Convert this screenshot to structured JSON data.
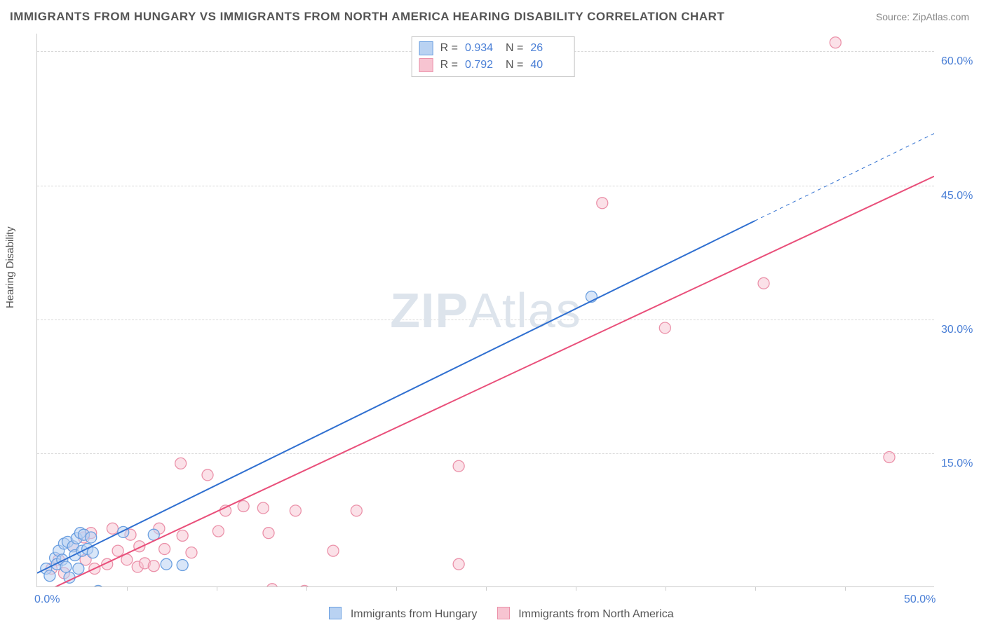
{
  "title": "IMMIGRANTS FROM HUNGARY VS IMMIGRANTS FROM NORTH AMERICA HEARING DISABILITY CORRELATION CHART",
  "source": "Source: ZipAtlas.com",
  "ylabel": "Hearing Disability",
  "watermark_bold": "ZIP",
  "watermark_light": "Atlas",
  "chart": {
    "type": "scatter",
    "xlim": [
      0,
      50
    ],
    "ylim": [
      0,
      62
    ],
    "x_ticks_labeled": [
      {
        "v": 0,
        "label": "0.0%"
      },
      {
        "v": 50,
        "label": "50.0%"
      }
    ],
    "x_ticks_minor": [
      5,
      10,
      15,
      20,
      25,
      30,
      35,
      40,
      45
    ],
    "y_gridlines": [
      15,
      30,
      45,
      60
    ],
    "y_tick_labels": [
      "15.0%",
      "30.0%",
      "45.0%",
      "60.0%"
    ],
    "background_color": "#ffffff",
    "grid_color": "#d8d8d8",
    "axis_color": "#cccccc",
    "tick_label_color": "#4a7fd6",
    "marker_radius": 8,
    "marker_stroke_width": 1.3,
    "line_width": 2,
    "series": [
      {
        "name": "Immigrants from Hungary",
        "short": "hungary",
        "color_stroke": "#6a9fe0",
        "color_fill": "#b9d2f2",
        "color_fill_opacity": 0.55,
        "line_color": "#2f6fd0",
        "R": "0.934",
        "N": "26",
        "points": [
          [
            0.5,
            2.0
          ],
          [
            0.7,
            1.2
          ],
          [
            1.0,
            3.2
          ],
          [
            1.1,
            2.5
          ],
          [
            1.2,
            4.0
          ],
          [
            1.4,
            3.0
          ],
          [
            1.5,
            4.8
          ],
          [
            1.6,
            2.2
          ],
          [
            1.7,
            5.0
          ],
          [
            1.8,
            1.0
          ],
          [
            2.0,
            4.5
          ],
          [
            2.1,
            3.5
          ],
          [
            2.2,
            5.4
          ],
          [
            2.3,
            2.0
          ],
          [
            2.4,
            6.0
          ],
          [
            2.5,
            4.0
          ],
          [
            2.6,
            5.8
          ],
          [
            2.8,
            4.2
          ],
          [
            3.0,
            5.5
          ],
          [
            3.1,
            3.8
          ],
          [
            3.4,
            -0.5
          ],
          [
            4.8,
            6.1
          ],
          [
            6.5,
            5.8
          ],
          [
            7.2,
            2.5
          ],
          [
            8.1,
            2.4
          ],
          [
            30.9,
            32.5
          ]
        ],
        "trend_x1": 0,
        "trend_y1": 1.5,
        "trend_x2": 40,
        "trend_y2": 41.0,
        "trend_dash_x2": 50,
        "trend_dash_y2": 50.8
      },
      {
        "name": "Immigrants from North America",
        "short": "north-america",
        "color_stroke": "#eb91a9",
        "color_fill": "#f7c4d1",
        "color_fill_opacity": 0.5,
        "line_color": "#e94f7a",
        "R": "0.792",
        "N": "40",
        "points": [
          [
            0.8,
            2.0
          ],
          [
            1.2,
            3.0
          ],
          [
            1.5,
            1.5
          ],
          [
            2.0,
            4.5
          ],
          [
            2.6,
            5.5
          ],
          [
            2.7,
            3.0
          ],
          [
            3.0,
            6.0
          ],
          [
            3.2,
            2.0
          ],
          [
            3.9,
            2.5
          ],
          [
            4.2,
            6.5
          ],
          [
            4.5,
            4.0
          ],
          [
            5.0,
            3.0
          ],
          [
            5.2,
            5.8
          ],
          [
            5.6,
            2.2
          ],
          [
            5.7,
            4.5
          ],
          [
            6.0,
            2.6
          ],
          [
            6.5,
            2.3
          ],
          [
            6.8,
            6.5
          ],
          [
            7.1,
            4.2
          ],
          [
            8.0,
            13.8
          ],
          [
            8.1,
            5.7
          ],
          [
            8.6,
            3.8
          ],
          [
            9.5,
            12.5
          ],
          [
            10.1,
            6.2
          ],
          [
            10.5,
            8.5
          ],
          [
            11.5,
            9.0
          ],
          [
            12.6,
            8.8
          ],
          [
            12.9,
            6.0
          ],
          [
            13.1,
            -0.3
          ],
          [
            14.4,
            8.5
          ],
          [
            14.9,
            -0.5
          ],
          [
            16.5,
            4.0
          ],
          [
            17.8,
            8.5
          ],
          [
            23.5,
            2.5
          ],
          [
            23.5,
            13.5
          ],
          [
            31.5,
            43.0
          ],
          [
            35.0,
            29.0
          ],
          [
            40.5,
            34.0
          ],
          [
            44.5,
            61.0
          ],
          [
            47.5,
            14.5
          ]
        ],
        "trend_x1": 0,
        "trend_y1": -1.0,
        "trend_x2": 50,
        "trend_y2": 46.0
      }
    ]
  },
  "legend_top": {
    "r_label": "R =",
    "n_label": "N ="
  },
  "legend_bottom": [
    {
      "series": 0
    },
    {
      "series": 1
    }
  ]
}
